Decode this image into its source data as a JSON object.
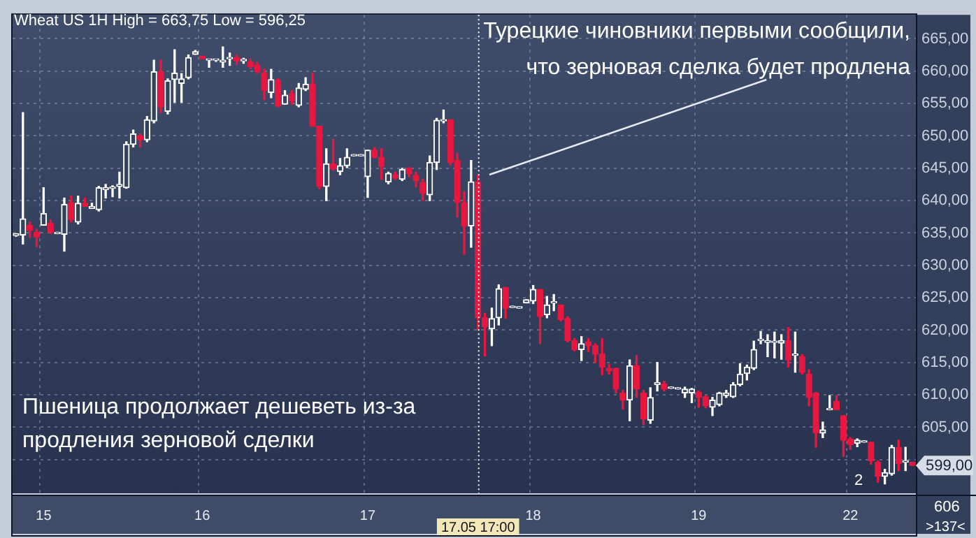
{
  "chart_data": {
    "type": "candlestick",
    "title": "Wheat US 1H High = 663,75 Low = 596,25",
    "annotations": [
      "Турецкие чиновники первыми сообщили,\nчто зерновая сделка будет продлена",
      "Пшеница продолжает дешеветь из-за\nпродления зерновой сделки",
      "606",
      ">137<",
      "2",
      "17.05 17:00",
      "599,00"
    ],
    "categories": [
      null,
      null,
      null,
      null,
      "15",
      null,
      null,
      null,
      null,
      null,
      null,
      null,
      null,
      null,
      null,
      null,
      null,
      null,
      null,
      null,
      null,
      null,
      null,
      null,
      null,
      null,
      null,
      "16",
      null,
      null,
      null,
      null,
      null,
      null,
      null,
      null,
      null,
      null,
      null,
      null,
      null,
      null,
      null,
      null,
      null,
      null,
      null,
      null,
      null,
      null,
      null,
      "17",
      null,
      null,
      null,
      null,
      null,
      null,
      null,
      null,
      null,
      null,
      null,
      null,
      null,
      null,
      null,
      null,
      null,
      null,
      null,
      null,
      null,
      null,
      null,
      "18",
      null,
      null,
      null,
      null,
      null,
      null,
      null,
      null,
      null,
      null,
      null,
      null,
      null,
      null,
      null,
      null,
      null,
      null,
      null,
      null,
      null,
      null,
      null,
      "19",
      null,
      null,
      null,
      null,
      null,
      null,
      null,
      null,
      null,
      null,
      null,
      null,
      null,
      null,
      null,
      null,
      null,
      null,
      null,
      null,
      null,
      "22",
      null,
      null,
      null,
      null,
      null,
      null,
      null,
      null,
      null
    ],
    "ohlc": [
      [
        634.6,
        634.9,
        634.5,
        634.9
      ],
      [
        634.7,
        653.6,
        633.3,
        637.2
      ],
      [
        636.2,
        636.7,
        634.3,
        635.4
      ],
      [
        635.1,
        635.6,
        632.9,
        634.4
      ],
      [
        636.2,
        642.0,
        636.2,
        638.0
      ],
      [
        636.5,
        637.0,
        634.9,
        635.1
      ],
      [
        634.9,
        635.0,
        634.9,
        634.9
      ],
      [
        634.8,
        640.4,
        632.2,
        639.4
      ],
      [
        639.7,
        640.7,
        636.7,
        637.1
      ],
      [
        636.7,
        640.7,
        636.4,
        639.6
      ],
      [
        639.6,
        640.4,
        639.1,
        639.1
      ],
      [
        638.8,
        639.6,
        638.8,
        639.1
      ],
      [
        638.6,
        642.2,
        638.4,
        642.0
      ],
      [
        641.7,
        642.5,
        640.4,
        642.0
      ],
      [
        641.9,
        642.3,
        640.6,
        642.1
      ],
      [
        642.2,
        644.4,
        640.4,
        642.5
      ],
      [
        642.0,
        649.1,
        641.9,
        648.7
      ],
      [
        648.7,
        650.9,
        648.3,
        650.3
      ],
      [
        650.0,
        650.3,
        648.3,
        649.4
      ],
      [
        649.4,
        653.0,
        649.1,
        652.5
      ],
      [
        652.3,
        661.7,
        652.0,
        659.9
      ],
      [
        659.9,
        661.7,
        653.6,
        654.5
      ],
      [
        653.8,
        658.8,
        653.4,
        658.5
      ],
      [
        658.7,
        663.3,
        655.2,
        659.7
      ],
      [
        658.1,
        659.6,
        655.2,
        658.8
      ],
      [
        659.0,
        662.5,
        658.8,
        662.1
      ],
      [
        662.6,
        663.2,
        662.6,
        663.0
      ],
      [
        662.3,
        662.3,
        661.9,
        661.9
      ],
      [
        661.7,
        661.8,
        660.6,
        661.7
      ],
      [
        661.7,
        661.7,
        661.5,
        661.7
      ],
      [
        661.4,
        663.75,
        660.6,
        661.7
      ],
      [
        661.9,
        662.8,
        660.9,
        661.9
      ],
      [
        662.1,
        662.5,
        661.0,
        661.6
      ],
      [
        661.6,
        662.0,
        661.2,
        661.6
      ],
      [
        661.4,
        661.9,
        660.4,
        660.7
      ],
      [
        660.9,
        661.4,
        659.7,
        659.9
      ],
      [
        659.7,
        660.3,
        655.6,
        657.0
      ],
      [
        656.7,
        660.3,
        655.9,
        658.7
      ],
      [
        658.6,
        658.8,
        654.5,
        654.6
      ],
      [
        654.9,
        657.0,
        654.9,
        656.3
      ],
      [
        656.5,
        657.0,
        654.9,
        655.4
      ],
      [
        654.7,
        658.1,
        654.5,
        657.4
      ],
      [
        657.2,
        659.0,
        657.0,
        658.0
      ],
      [
        658.0,
        659.7,
        651.5,
        651.5
      ],
      [
        651.5,
        651.5,
        641.8,
        642.2
      ],
      [
        642.2,
        648.0,
        640.0,
        645.7
      ],
      [
        645.7,
        649.5,
        644.7,
        644.9
      ],
      [
        644.5,
        646.5,
        644.0,
        645.4
      ],
      [
        645.4,
        648.0,
        645.1,
        646.7
      ],
      [
        646.9,
        646.9,
        646.9,
        646.9
      ],
      [
        646.9,
        646.9,
        646.9,
        646.9
      ],
      [
        643.7,
        647.8,
        640.5,
        647.8
      ],
      [
        647.8,
        648.2,
        646.6,
        646.7
      ],
      [
        646.7,
        648.0,
        643.3,
        645.3
      ],
      [
        642.9,
        644.4,
        642.6,
        644.2
      ],
      [
        644.0,
        644.4,
        643.3,
        643.5
      ],
      [
        643.3,
        645.0,
        643.1,
        644.8
      ],
      [
        645.0,
        645.1,
        643.7,
        644.2
      ],
      [
        643.9,
        644.4,
        642.1,
        643.1
      ],
      [
        642.8,
        643.3,
        640.0,
        641.1
      ],
      [
        640.9,
        646.9,
        640.0,
        645.9
      ],
      [
        645.9,
        652.7,
        644.8,
        652.4
      ],
      [
        652.3,
        654.0,
        652.0,
        652.5
      ],
      [
        652.5,
        652.5,
        645.5,
        645.9
      ],
      [
        646.2,
        647.3,
        637.5,
        639.7
      ],
      [
        639.7,
        641.4,
        631.7,
        636.1
      ],
      [
        636.1,
        646.2,
        632.8,
        642.9
      ],
      [
        642.9,
        644.0,
        620.1,
        621.9
      ],
      [
        621.9,
        622.6,
        616.0,
        620.5
      ],
      [
        620.2,
        623.4,
        617.6,
        621.8
      ],
      [
        621.9,
        627.0,
        620.8,
        626.4
      ],
      [
        626.6,
        626.6,
        621.8,
        623.4
      ],
      [
        623.5,
        623.5,
        623.5,
        623.5
      ],
      [
        623.4,
        623.4,
        623.4,
        623.4
      ],
      [
        624.2,
        624.7,
        624.2,
        624.7
      ],
      [
        624.5,
        626.9,
        624.1,
        626.3
      ],
      [
        626.3,
        626.3,
        617.9,
        622.1
      ],
      [
        622.4,
        625.2,
        621.9,
        623.9
      ],
      [
        624.2,
        625.5,
        623.0,
        624.2
      ],
      [
        623.9,
        623.9,
        621.4,
        621.6
      ],
      [
        621.8,
        622.1,
        618.2,
        618.4
      ],
      [
        618.4,
        618.7,
        616.8,
        617.0
      ],
      [
        617.0,
        619.0,
        615.3,
        617.9
      ],
      [
        618.2,
        618.7,
        616.7,
        617.6
      ],
      [
        617.6,
        617.9,
        615.0,
        616.3
      ],
      [
        616.3,
        618.7,
        613.1,
        614.3
      ],
      [
        614.1,
        614.7,
        613.2,
        613.7
      ],
      [
        614.1,
        614.1,
        610.3,
        610.9
      ],
      [
        610.3,
        610.7,
        607.8,
        609.2
      ],
      [
        609.2,
        615.4,
        606.0,
        614.5
      ],
      [
        614.5,
        616.1,
        609.6,
        610.9
      ],
      [
        610.3,
        610.7,
        605.4,
        606.3
      ],
      [
        606.1,
        611.1,
        605.6,
        609.6
      ],
      [
        611.6,
        615.0,
        610.6,
        611.9
      ],
      [
        611.7,
        612.1,
        610.6,
        610.9
      ],
      [
        611.0,
        611.0,
        611.0,
        611.0
      ],
      [
        610.9,
        610.9,
        610.9,
        610.9
      ],
      [
        610.3,
        611.2,
        609.6,
        610.9
      ],
      [
        610.3,
        611.0,
        608.8,
        610.9
      ],
      [
        610.4,
        610.6,
        608.1,
        609.6
      ],
      [
        609.7,
        609.9,
        608.0,
        608.3
      ],
      [
        608.1,
        609.6,
        606.8,
        609.2
      ],
      [
        608.5,
        610.4,
        608.3,
        610.3
      ],
      [
        609.9,
        610.7,
        609.6,
        610.3
      ],
      [
        609.7,
        611.9,
        609.6,
        611.6
      ],
      [
        611.6,
        614.8,
        611.4,
        613.2
      ],
      [
        613.3,
        614.6,
        612.3,
        614.3
      ],
      [
        614.1,
        618.3,
        613.9,
        617.0
      ],
      [
        618.4,
        619.8,
        617.9,
        618.4
      ],
      [
        618.1,
        619.3,
        615.9,
        618.4
      ],
      [
        618.1,
        619.7,
        615.7,
        618.1
      ],
      [
        618.0,
        619.3,
        615.5,
        618.4
      ],
      [
        618.4,
        620.4,
        614.3,
        615.4
      ],
      [
        616.1,
        619.7,
        613.5,
        616.1
      ],
      [
        615.9,
        616.2,
        613.2,
        613.5
      ],
      [
        613.2,
        613.9,
        608.3,
        609.6
      ],
      [
        610.3,
        610.4,
        601.9,
        604.1
      ],
      [
        604.1,
        605.8,
        603.4,
        604.6
      ],
      [
        607.7,
        609.9,
        607.7,
        607.7
      ],
      [
        609.0,
        609.9,
        607.7,
        607.7
      ],
      [
        606.8,
        606.8,
        600.5,
        603.0
      ],
      [
        603.2,
        603.4,
        601.6,
        602.3
      ],
      [
        602.5,
        603.2,
        602.0,
        603.0
      ],
      [
        602.7,
        602.7,
        602.7,
        602.7
      ],
      [
        602.7,
        602.7,
        599.3,
        599.8
      ],
      [
        599.6,
        599.8,
        596.5,
        597.4
      ],
      [
        597.4,
        598.5,
        596.25,
        598.0
      ],
      [
        597.8,
        602.2,
        597.6,
        601.9
      ],
      [
        601.9,
        603.0,
        598.3,
        599.4
      ],
      [
        599.6,
        601.9,
        598.3,
        599.6
      ],
      [
        599.6,
        599.6,
        599.1,
        599.1
      ]
    ],
    "colors": [
      "#ffffff",
      "#ffffff",
      "#e8173f",
      "#e8173f",
      "#ffffff",
      "#e8173f",
      "#ffffff",
      "#ffffff",
      "#e8173f",
      "#ffffff",
      "#e8173f",
      "#ffffff",
      "#ffffff",
      "#ffffff",
      "#ffffff",
      "#ffffff",
      "#ffffff",
      "#ffffff",
      "#e8173f",
      "#ffffff",
      "#ffffff",
      "#e8173f",
      "#ffffff",
      "#ffffff",
      "#ffffff",
      "#ffffff",
      "#ffffff",
      "#e8173f",
      "#ffffff",
      "#ffffff",
      "#ffffff",
      "#ffffff",
      "#e8173f",
      "#ffffff",
      "#e8173f",
      "#e8173f",
      "#e8173f",
      "#ffffff",
      "#e8173f",
      "#ffffff",
      "#e8173f",
      "#ffffff",
      "#ffffff",
      "#e8173f",
      "#e8173f",
      "#ffffff",
      "#e8173f",
      "#ffffff",
      "#ffffff",
      "#ffffff",
      "#ffffff",
      "#ffffff",
      "#e8173f",
      "#e8173f",
      "#ffffff",
      "#e8173f",
      "#ffffff",
      "#e8173f",
      "#e8173f",
      "#e8173f",
      "#ffffff",
      "#ffffff",
      "#ffffff",
      "#e8173f",
      "#e8173f",
      "#e8173f",
      "#ffffff",
      "#e8173f",
      "#e8173f",
      "#ffffff",
      "#ffffff",
      "#e8173f",
      "#ffffff",
      "#ffffff",
      "#ffffff",
      "#ffffff",
      "#e8173f",
      "#ffffff",
      "#ffffff",
      "#e8173f",
      "#e8173f",
      "#e8173f",
      "#ffffff",
      "#e8173f",
      "#e8173f",
      "#e8173f",
      "#e8173f",
      "#e8173f",
      "#e8173f",
      "#ffffff",
      "#e8173f",
      "#e8173f",
      "#ffffff",
      "#ffffff",
      "#e8173f",
      "#ffffff",
      "#ffffff",
      "#ffffff",
      "#ffffff",
      "#e8173f",
      "#e8173f",
      "#ffffff",
      "#ffffff",
      "#ffffff",
      "#ffffff",
      "#ffffff",
      "#ffffff",
      "#ffffff",
      "#ffffff",
      "#ffffff",
      "#ffffff",
      "#ffffff",
      "#e8173f",
      "#ffffff",
      "#e8173f",
      "#e8173f",
      "#e8173f",
      "#ffffff",
      "#ffffff",
      "#e8173f",
      "#e8173f",
      "#e8173f",
      "#ffffff",
      "#ffffff",
      "#e8173f",
      "#e8173f",
      "#ffffff",
      "#ffffff",
      "#e8173f",
      "#ffffff",
      "#e8173f"
    ],
    "ylim": [
      594.8,
      668.7
    ],
    "yticks": [
      {
        "value": 600,
        "label": null
      },
      {
        "value": 605,
        "label": "605,00"
      },
      {
        "value": 610,
        "label": "610,00"
      },
      {
        "value": 615,
        "label": "615,00"
      },
      {
        "value": 620,
        "label": "620,00"
      },
      {
        "value": 625,
        "label": "625,00"
      },
      {
        "value": 630,
        "label": "630,00"
      },
      {
        "value": 635,
        "label": "635,00"
      },
      {
        "value": 640,
        "label": "640,00"
      },
      {
        "value": 645,
        "label": "645,00"
      },
      {
        "value": 650,
        "label": "650,00"
      },
      {
        "value": 655,
        "label": "655,00"
      },
      {
        "value": 660,
        "label": "660,00"
      },
      {
        "value": 665,
        "label": "665,00"
      }
    ],
    "grid": true,
    "legend": false
  }
}
